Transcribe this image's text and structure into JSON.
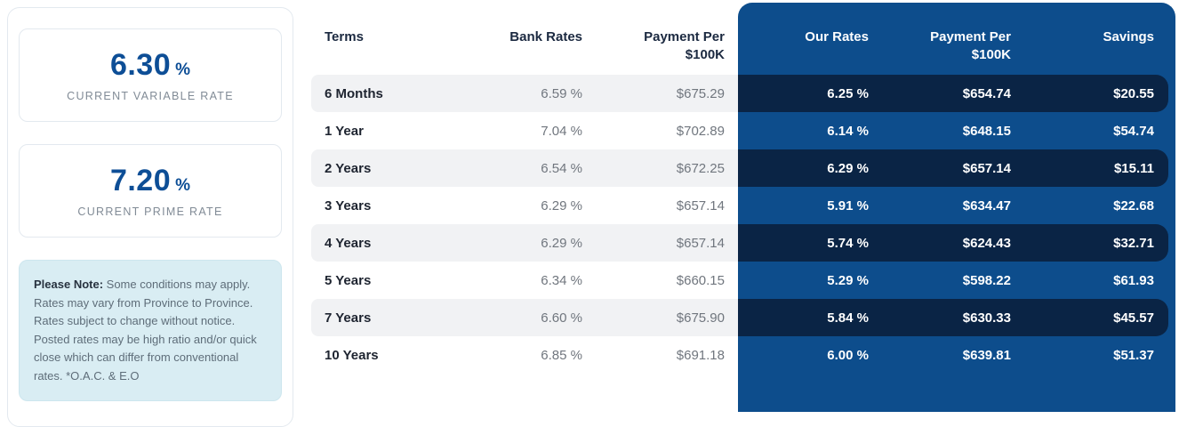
{
  "sidebar": {
    "variable_rate": {
      "value": "6.30",
      "unit": "%",
      "label": "CURRENT VARIABLE RATE"
    },
    "prime_rate": {
      "value": "7.20",
      "unit": "%",
      "label": "CURRENT PRIME RATE"
    },
    "note": {
      "title": "Please Note:",
      "body": " Some conditions may apply. Rates may vary from Province to Province. Rates subject to change without notice. Posted rates may be high ratio and/or quick close which can differ from conventional rates. *O.A.C. & E.O"
    }
  },
  "table": {
    "headers": {
      "terms": "Terms",
      "bank_rates": "Bank Rates",
      "bank_payment_line1": "Payment Per",
      "bank_payment_line2": "$100K",
      "our_rates": "Our Rates",
      "our_payment_line1": "Payment Per",
      "our_payment_line2": "$100K",
      "savings": "Savings"
    },
    "rows": [
      {
        "term": "6 Months",
        "bank_rate": "6.59 %",
        "bank_payment": "$675.29",
        "our_rate": "6.25 %",
        "our_payment": "$654.74",
        "savings": "$20.55"
      },
      {
        "term": "1 Year",
        "bank_rate": "7.04 %",
        "bank_payment": "$702.89",
        "our_rate": "6.14 %",
        "our_payment": "$648.15",
        "savings": "$54.74"
      },
      {
        "term": "2 Years",
        "bank_rate": "6.54 %",
        "bank_payment": "$672.25",
        "our_rate": "6.29 %",
        "our_payment": "$657.14",
        "savings": "$15.11"
      },
      {
        "term": "3 Years",
        "bank_rate": "6.29 %",
        "bank_payment": "$657.14",
        "our_rate": "5.91 %",
        "our_payment": "$634.47",
        "savings": "$22.68"
      },
      {
        "term": "4 Years",
        "bank_rate": "6.29 %",
        "bank_payment": "$657.14",
        "our_rate": "5.74 %",
        "our_payment": "$624.43",
        "savings": "$32.71"
      },
      {
        "term": "5 Years",
        "bank_rate": "6.34 %",
        "bank_payment": "$660.15",
        "our_rate": "5.29 %",
        "our_payment": "$598.22",
        "savings": "$61.93"
      },
      {
        "term": "7 Years",
        "bank_rate": "6.60 %",
        "bank_payment": "$675.90",
        "our_rate": "5.84 %",
        "our_payment": "$630.33",
        "savings": "$45.57"
      },
      {
        "term": "10 Years",
        "bank_rate": "6.85 %",
        "bank_payment": "$691.18",
        "our_rate": "6.00 %",
        "our_payment": "$639.81",
        "savings": "$51.37"
      }
    ]
  },
  "colors": {
    "panel_blue": "#0d4d8c",
    "row_navy": "#0a2445",
    "accent_blue": "#0d4e96",
    "note_bg": "#d9edf3",
    "striped_row_gray": "#f1f2f4"
  }
}
